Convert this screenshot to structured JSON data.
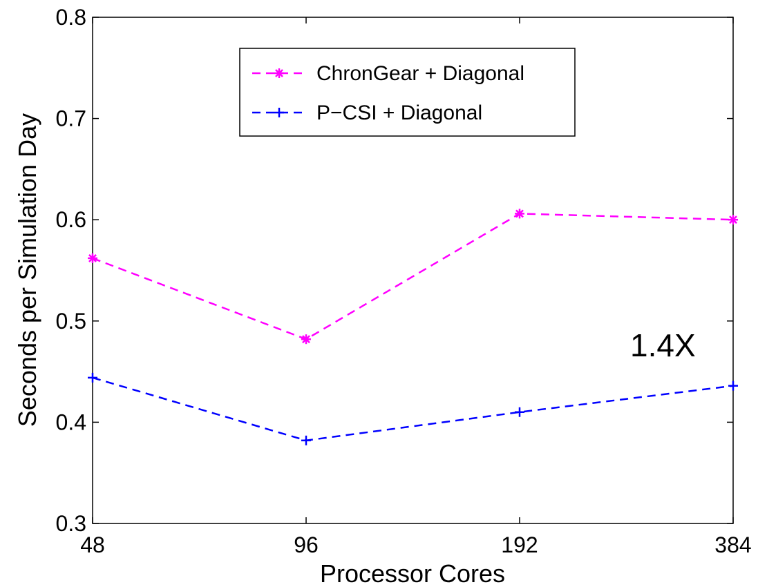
{
  "chart_data": {
    "type": "line",
    "title": "",
    "xlabel": "Processor Cores",
    "ylabel": "Seconds per Simulation Day",
    "categories": [
      "48",
      "96",
      "192",
      "384"
    ],
    "ylim": [
      0.3,
      0.8
    ],
    "yticks": [
      "0.3",
      "0.4",
      "0.5",
      "0.6",
      "0.7",
      "0.8"
    ],
    "grid": false,
    "legend_position": "top-center",
    "series": [
      {
        "name": "ChronGear + Diagonal",
        "values": [
          0.562,
          0.482,
          0.606,
          0.6
        ],
        "color": "#ff00ff",
        "marker": "asterisk",
        "line_style": "dashed"
      },
      {
        "name": "P−CSI + Diagonal",
        "values": [
          0.444,
          0.382,
          0.41,
          0.436
        ],
        "color": "#0000ff",
        "marker": "plus",
        "line_style": "dashed"
      }
    ],
    "annotations": [
      {
        "text": "1.4X",
        "color": "#c0392b"
      }
    ]
  }
}
